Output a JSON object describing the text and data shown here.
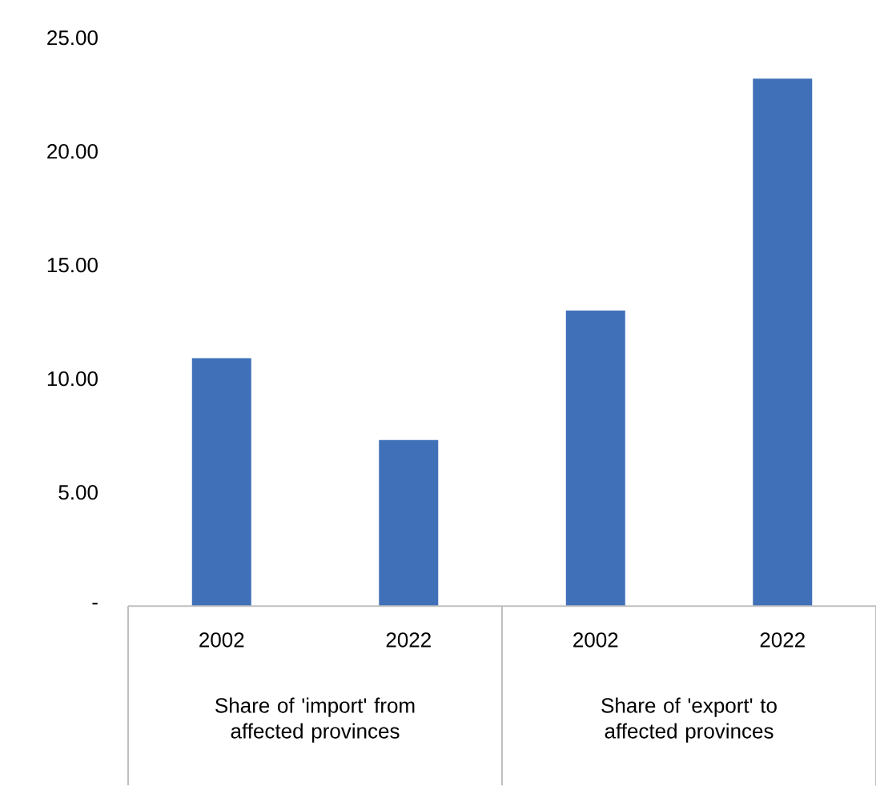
{
  "chart_data": {
    "type": "bar",
    "categories": [
      "2002",
      "2022",
      "2002",
      "2022"
    ],
    "values": [
      10.9,
      7.3,
      13.0,
      23.2
    ],
    "color": "#4070b8",
    "ylim": [
      0,
      25
    ],
    "yticks": [
      {
        "value": 0,
        "label": "-"
      },
      {
        "value": 5,
        "label": "5.00"
      },
      {
        "value": 10,
        "label": "10.00"
      },
      {
        "value": 15,
        "label": "15.00"
      },
      {
        "value": 20,
        "label": "20.00"
      },
      {
        "value": 25,
        "label": "25.00"
      }
    ],
    "annotations": [
      "Share of 'import' from affected provinces",
      "Share of 'export' to affected provinces"
    ],
    "grid": false
  }
}
